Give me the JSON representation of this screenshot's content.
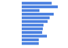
{
  "chart_data": {
    "type": "bar",
    "orientation": "horizontal",
    "categories": [
      null,
      null,
      null,
      null,
      null,
      null,
      null,
      null,
      null,
      null,
      null,
      null
    ],
    "values": [
      44,
      53,
      26,
      47,
      41,
      38,
      32,
      31,
      30,
      37,
      25,
      25
    ],
    "color": "#4a80e0",
    "xlim": [
      0,
      60
    ],
    "tick_labels": false,
    "grid": false
  }
}
